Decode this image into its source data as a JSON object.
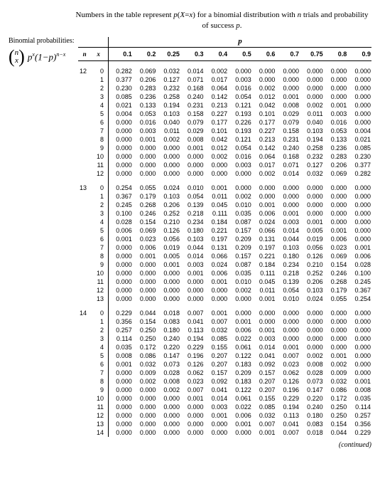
{
  "caption_parts": [
    "Numbers in the table represent ",
    "p",
    "(",
    "X",
    "=",
    "x",
    ") for a binomial distribution with ",
    "n",
    " trials and probability of success ",
    "p",
    "."
  ],
  "sidebar": {
    "label": "Binomial probabilities:",
    "formula": {
      "top": "n",
      "bot": "x",
      "rest_html": "p<sup>x</sup>(1−p)<sup>n−x</sup>"
    }
  },
  "header": {
    "p_label": "p",
    "n_label": "n",
    "x_label": "x",
    "p_values": [
      "0.1",
      "0.2",
      "0.25",
      "0.3",
      "0.4",
      "0.5",
      "0.6",
      "0.7",
      "0.75",
      "0.8",
      "0.9"
    ]
  },
  "groups": [
    {
      "n": "12",
      "rows": [
        [
          "0",
          "0.282",
          "0.069",
          "0.032",
          "0.014",
          "0.002",
          "0.000",
          "0.000",
          "0.000",
          "0.000",
          "0.000",
          "0.000"
        ],
        [
          "1",
          "0.377",
          "0.206",
          "0.127",
          "0.071",
          "0.017",
          "0.003",
          "0.000",
          "0.000",
          "0.000",
          "0.000",
          "0.000"
        ],
        [
          "2",
          "0.230",
          "0.283",
          "0.232",
          "0.168",
          "0.064",
          "0.016",
          "0.002",
          "0.000",
          "0.000",
          "0.000",
          "0.000"
        ],
        [
          "3",
          "0.085",
          "0.236",
          "0.258",
          "0.240",
          "0.142",
          "0.054",
          "0.012",
          "0.001",
          "0.000",
          "0.000",
          "0.000"
        ],
        [
          "4",
          "0.021",
          "0.133",
          "0.194",
          "0.231",
          "0.213",
          "0.121",
          "0.042",
          "0.008",
          "0.002",
          "0.001",
          "0.000"
        ],
        [
          "5",
          "0.004",
          "0.053",
          "0.103",
          "0.158",
          "0.227",
          "0.193",
          "0.101",
          "0.029",
          "0.011",
          "0.003",
          "0.000"
        ],
        [
          "6",
          "0.000",
          "0.016",
          "0.040",
          "0.079",
          "0.177",
          "0.226",
          "0.177",
          "0.079",
          "0.040",
          "0.016",
          "0.000"
        ],
        [
          "7",
          "0.000",
          "0.003",
          "0.011",
          "0.029",
          "0.101",
          "0.193",
          "0.227",
          "0.158",
          "0.103",
          "0.053",
          "0.004"
        ],
        [
          "8",
          "0.000",
          "0.001",
          "0.002",
          "0.008",
          "0.042",
          "0.121",
          "0.213",
          "0.231",
          "0.194",
          "0.133",
          "0.021"
        ],
        [
          "9",
          "0.000",
          "0.000",
          "0.000",
          "0.001",
          "0.012",
          "0.054",
          "0.142",
          "0.240",
          "0.258",
          "0.236",
          "0.085"
        ],
        [
          "10",
          "0.000",
          "0.000",
          "0.000",
          "0.000",
          "0.002",
          "0.016",
          "0.064",
          "0.168",
          "0.232",
          "0.283",
          "0.230"
        ],
        [
          "11",
          "0.000",
          "0.000",
          "0.000",
          "0.000",
          "0.000",
          "0.003",
          "0.017",
          "0.071",
          "0.127",
          "0.206",
          "0.377"
        ],
        [
          "12",
          "0.000",
          "0.000",
          "0.000",
          "0.000",
          "0.000",
          "0.000",
          "0.002",
          "0.014",
          "0.032",
          "0.069",
          "0.282"
        ]
      ]
    },
    {
      "n": "13",
      "rows": [
        [
          "0",
          "0.254",
          "0.055",
          "0.024",
          "0.010",
          "0.001",
          "0.000",
          "0.000",
          "0.000",
          "0.000",
          "0.000",
          "0.000"
        ],
        [
          "1",
          "0.367",
          "0.179",
          "0.103",
          "0.054",
          "0.011",
          "0.002",
          "0.000",
          "0.000",
          "0.000",
          "0.000",
          "0.000"
        ],
        [
          "2",
          "0.245",
          "0.268",
          "0.206",
          "0.139",
          "0.045",
          "0.010",
          "0.001",
          "0.000",
          "0.000",
          "0.000",
          "0.000"
        ],
        [
          "3",
          "0.100",
          "0.246",
          "0.252",
          "0.218",
          "0.111",
          "0.035",
          "0.006",
          "0.001",
          "0.000",
          "0.000",
          "0.000"
        ],
        [
          "4",
          "0.028",
          "0.154",
          "0.210",
          "0.234",
          "0.184",
          "0.087",
          "0.024",
          "0.003",
          "0.001",
          "0.000",
          "0.000"
        ],
        [
          "5",
          "0.006",
          "0.069",
          "0.126",
          "0.180",
          "0.221",
          "0.157",
          "0.066",
          "0.014",
          "0.005",
          "0.001",
          "0.000"
        ],
        [
          "6",
          "0.001",
          "0.023",
          "0.056",
          "0.103",
          "0.197",
          "0.209",
          "0.131",
          "0.044",
          "0.019",
          "0.006",
          "0.000"
        ],
        [
          "7",
          "0.000",
          "0.006",
          "0.019",
          "0.044",
          "0.131",
          "0.209",
          "0.197",
          "0.103",
          "0.056",
          "0.023",
          "0.001"
        ],
        [
          "8",
          "0.000",
          "0.001",
          "0.005",
          "0.014",
          "0.066",
          "0.157",
          "0.221",
          "0.180",
          "0.126",
          "0.069",
          "0.006"
        ],
        [
          "9",
          "0.000",
          "0.000",
          "0.001",
          "0.003",
          "0.024",
          "0.087",
          "0.184",
          "0.234",
          "0.210",
          "0.154",
          "0.028"
        ],
        [
          "10",
          "0.000",
          "0.000",
          "0.000",
          "0.001",
          "0.006",
          "0.035",
          "0.111",
          "0.218",
          "0.252",
          "0.246",
          "0.100"
        ],
        [
          "11",
          "0.000",
          "0.000",
          "0.000",
          "0.000",
          "0.001",
          "0.010",
          "0.045",
          "0.139",
          "0.206",
          "0.268",
          "0.245"
        ],
        [
          "12",
          "0.000",
          "0.000",
          "0.000",
          "0.000",
          "0.000",
          "0.002",
          "0.011",
          "0.054",
          "0.103",
          "0.179",
          "0.367"
        ],
        [
          "13",
          "0.000",
          "0.000",
          "0.000",
          "0.000",
          "0.000",
          "0.000",
          "0.001",
          "0.010",
          "0.024",
          "0.055",
          "0.254"
        ]
      ]
    },
    {
      "n": "14",
      "rows": [
        [
          "0",
          "0.229",
          "0.044",
          "0.018",
          "0.007",
          "0.001",
          "0.000",
          "0.000",
          "0.000",
          "0.000",
          "0.000",
          "0.000"
        ],
        [
          "1",
          "0.356",
          "0.154",
          "0.083",
          "0.041",
          "0.007",
          "0.001",
          "0.000",
          "0.000",
          "0.000",
          "0.000",
          "0.000"
        ],
        [
          "2",
          "0.257",
          "0.250",
          "0.180",
          "0.113",
          "0.032",
          "0.006",
          "0.001",
          "0.000",
          "0.000",
          "0.000",
          "0.000"
        ],
        [
          "3",
          "0.114",
          "0.250",
          "0.240",
          "0.194",
          "0.085",
          "0.022",
          "0.003",
          "0.000",
          "0.000",
          "0.000",
          "0.000"
        ],
        [
          "4",
          "0.035",
          "0.172",
          "0.220",
          "0.229",
          "0.155",
          "0.061",
          "0.014",
          "0.001",
          "0.000",
          "0.000",
          "0.000"
        ],
        [
          "5",
          "0.008",
          "0.086",
          "0.147",
          "0.196",
          "0.207",
          "0.122",
          "0.041",
          "0.007",
          "0.002",
          "0.001",
          "0.000"
        ],
        [
          "6",
          "0.001",
          "0.032",
          "0.073",
          "0.126",
          "0.207",
          "0.183",
          "0.092",
          "0.023",
          "0.008",
          "0.002",
          "0.000"
        ],
        [
          "7",
          "0.000",
          "0.009",
          "0.028",
          "0.062",
          "0.157",
          "0.209",
          "0.157",
          "0.062",
          "0.028",
          "0.009",
          "0.000"
        ],
        [
          "8",
          "0.000",
          "0.002",
          "0.008",
          "0.023",
          "0.092",
          "0.183",
          "0.207",
          "0.126",
          "0.073",
          "0.032",
          "0.001"
        ],
        [
          "9",
          "0.000",
          "0.000",
          "0.002",
          "0.007",
          "0.041",
          "0.122",
          "0.207",
          "0.196",
          "0.147",
          "0.086",
          "0.008"
        ],
        [
          "10",
          "0.000",
          "0.000",
          "0.000",
          "0.001",
          "0.014",
          "0.061",
          "0.155",
          "0.229",
          "0.220",
          "0.172",
          "0.035"
        ],
        [
          "11",
          "0.000",
          "0.000",
          "0.000",
          "0.000",
          "0.003",
          "0.022",
          "0.085",
          "0.194",
          "0.240",
          "0.250",
          "0.114"
        ],
        [
          "12",
          "0.000",
          "0.000",
          "0.000",
          "0.000",
          "0.001",
          "0.006",
          "0.032",
          "0.113",
          "0.180",
          "0.250",
          "0.257"
        ],
        [
          "13",
          "0.000",
          "0.000",
          "0.000",
          "0.000",
          "0.000",
          "0.001",
          "0.007",
          "0.041",
          "0.083",
          "0.154",
          "0.356"
        ],
        [
          "14",
          "0.000",
          "0.000",
          "0.000",
          "0.000",
          "0.000",
          "0.000",
          "0.001",
          "0.007",
          "0.018",
          "0.044",
          "0.229"
        ]
      ]
    }
  ],
  "continued": "(continued)",
  "style": {
    "rule_color": "#000000",
    "body_font_size": 9,
    "caption_font_size": 11
  }
}
